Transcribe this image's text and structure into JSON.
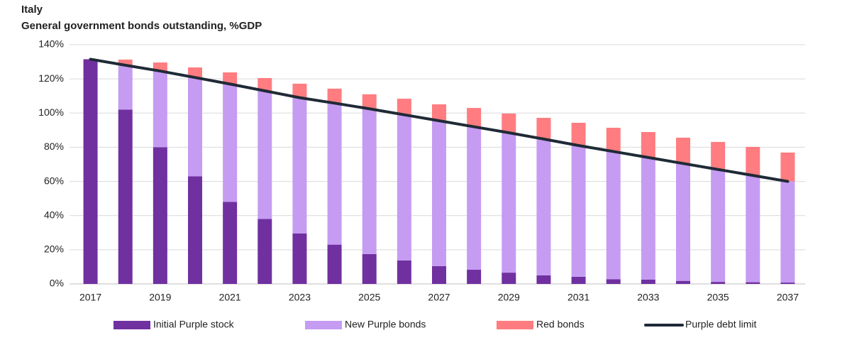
{
  "chart_data": {
    "type": "bar",
    "stacked": true,
    "title": "Italy",
    "subtitle": "General government bonds outstanding, %GDP",
    "categories": [
      "2017",
      null,
      "2019",
      null,
      "2021",
      null,
      "2023",
      null,
      "2025",
      null,
      "2027",
      null,
      "2029",
      null,
      "2031",
      null,
      "2033",
      null,
      "2035",
      null,
      "2037"
    ],
    "series": [
      {
        "name": "Initial Purple stock",
        "type": "bar",
        "color": "#7030a0",
        "values": [
          131.5,
          102,
          80,
          63,
          48,
          38,
          29.5,
          23,
          17.5,
          13.7,
          10.4,
          8.3,
          6.6,
          5,
          4.2,
          2.7,
          2.5,
          1.8,
          1.2,
          1,
          0.8
        ]
      },
      {
        "name": "New Purple bonds",
        "type": "bar",
        "color": "#c59cf2",
        "values": [
          0,
          26,
          44.6,
          57.8,
          69,
          75,
          79.5,
          82.8,
          85,
          85.3,
          85.1,
          83.7,
          81.9,
          79.8,
          76.8,
          74.8,
          71.5,
          68.7,
          65.8,
          62.5,
          59.2
        ]
      },
      {
        "name": "Red bonds",
        "type": "bar",
        "color": "#ff7c80",
        "values": [
          0,
          3.3,
          5,
          5.9,
          6.8,
          7.5,
          8.2,
          8.5,
          8.5,
          9.4,
          9.6,
          11,
          11.2,
          12.4,
          13.3,
          13.9,
          14.9,
          15.1,
          16.1,
          16.7,
          16.9
        ]
      },
      {
        "name": "Purple debt limit",
        "type": "line",
        "color": "#1f2a36",
        "values": [
          131.5,
          128,
          124.6,
          120.8,
          117,
          113,
          109,
          105.8,
          102.5,
          99,
          95.5,
          92,
          88.5,
          84.8,
          81,
          77.5,
          74,
          70.5,
          67,
          63.5,
          60
        ]
      }
    ],
    "ylim": [
      0,
      140
    ],
    "yticks": [
      {
        "value": 0,
        "label": "0%"
      },
      {
        "value": 20,
        "label": "20%"
      },
      {
        "value": 40,
        "label": "40%"
      },
      {
        "value": 60,
        "label": "60%"
      },
      {
        "value": 80,
        "label": "80%"
      },
      {
        "value": 100,
        "label": "100%"
      },
      {
        "value": 120,
        "label": "120%"
      },
      {
        "value": 140,
        "label": "140%"
      }
    ],
    "grid": true,
    "legend": "bottom"
  }
}
